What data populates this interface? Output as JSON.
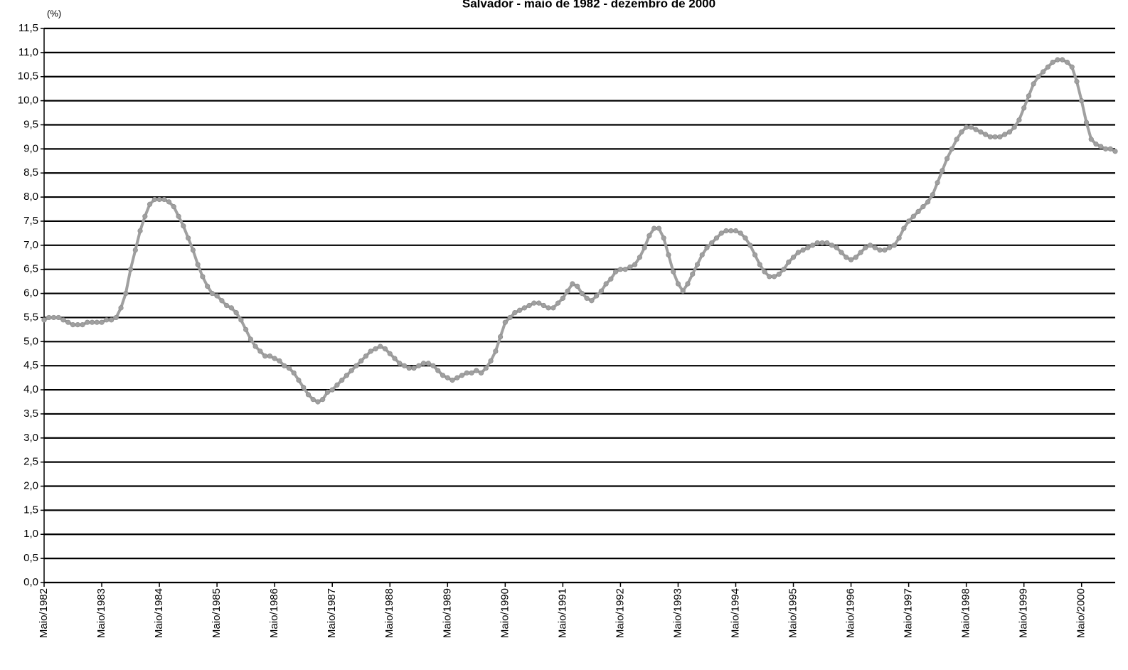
{
  "chart_data": {
    "type": "line",
    "title": "Salvador - maio de 1982 - dezembro de 2000",
    "y_label": "(%)",
    "categories": [
      "Maio/1982",
      null,
      null,
      null,
      null,
      null,
      null,
      null,
      null,
      null,
      null,
      null,
      "Maio/1983",
      null,
      null,
      null,
      null,
      null,
      null,
      null,
      null,
      null,
      null,
      null,
      "Maio/1984",
      null,
      null,
      null,
      null,
      null,
      null,
      null,
      null,
      null,
      null,
      null,
      "Maio/1985",
      null,
      null,
      null,
      null,
      null,
      null,
      null,
      null,
      null,
      null,
      null,
      "Maio/1986",
      null,
      null,
      null,
      null,
      null,
      null,
      null,
      null,
      null,
      null,
      null,
      "Maio/1987",
      null,
      null,
      null,
      null,
      null,
      null,
      null,
      null,
      null,
      null,
      null,
      "Maio/1988",
      null,
      null,
      null,
      null,
      null,
      null,
      null,
      null,
      null,
      null,
      null,
      "Maio/1989",
      null,
      null,
      null,
      null,
      null,
      null,
      null,
      null,
      null,
      null,
      null,
      "Maio/1990",
      null,
      null,
      null,
      null,
      null,
      null,
      null,
      null,
      null,
      null,
      null,
      "Maio/1991",
      null,
      null,
      null,
      null,
      null,
      null,
      null,
      null,
      null,
      null,
      null,
      "Maio/1992",
      null,
      null,
      null,
      null,
      null,
      null,
      null,
      null,
      null,
      null,
      null,
      "Maio/1993",
      null,
      null,
      null,
      null,
      null,
      null,
      null,
      null,
      null,
      null,
      null,
      "Maio/1994",
      null,
      null,
      null,
      null,
      null,
      null,
      null,
      null,
      null,
      null,
      null,
      "Maio/1995",
      null,
      null,
      null,
      null,
      null,
      null,
      null,
      null,
      null,
      null,
      null,
      "Maio/1996",
      null,
      null,
      null,
      null,
      null,
      null,
      null,
      null,
      null,
      null,
      null,
      "Maio/1997",
      null,
      null,
      null,
      null,
      null,
      null,
      null,
      null,
      null,
      null,
      null,
      "Maio/1998",
      null,
      null,
      null,
      null,
      null,
      null,
      null,
      null,
      null,
      null,
      null,
      "Maio/1999",
      null,
      null,
      null,
      null,
      null,
      null,
      null,
      null,
      null,
      null,
      null,
      "Maio/2000",
      null,
      null,
      null,
      null,
      null,
      null,
      null
    ],
    "series": [
      {
        "color": "#a0a0a0",
        "values": [
          5.45,
          5.5,
          5.5,
          5.5,
          5.45,
          5.4,
          5.35,
          5.35,
          5.35,
          5.4,
          5.4,
          5.4,
          5.4,
          5.45,
          5.45,
          5.5,
          5.7,
          6.0,
          6.5,
          6.9,
          7.3,
          7.6,
          7.85,
          7.95,
          7.95,
          7.95,
          7.9,
          7.8,
          7.6,
          7.4,
          7.15,
          6.9,
          6.6,
          6.35,
          6.15,
          6.0,
          5.95,
          5.85,
          5.75,
          5.7,
          5.6,
          5.45,
          5.25,
          5.05,
          4.9,
          4.8,
          4.7,
          4.7,
          4.65,
          4.6,
          4.5,
          4.45,
          4.35,
          4.2,
          4.05,
          3.9,
          3.8,
          3.75,
          3.8,
          3.95,
          4.0,
          4.1,
          4.2,
          4.3,
          4.4,
          4.5,
          4.6,
          4.7,
          4.8,
          4.85,
          4.9,
          4.85,
          4.75,
          4.65,
          4.55,
          4.5,
          4.45,
          4.45,
          4.5,
          4.55,
          4.55,
          4.5,
          4.4,
          4.3,
          4.25,
          4.2,
          4.25,
          4.3,
          4.35,
          4.35,
          4.4,
          4.35,
          4.45,
          4.6,
          4.8,
          5.1,
          5.4,
          5.5,
          5.6,
          5.65,
          5.7,
          5.75,
          5.8,
          5.8,
          5.75,
          5.7,
          5.7,
          5.8,
          5.9,
          6.05,
          6.2,
          6.15,
          6.0,
          5.9,
          5.85,
          5.95,
          6.05,
          6.2,
          6.3,
          6.45,
          6.5,
          6.5,
          6.55,
          6.6,
          6.75,
          6.95,
          7.2,
          7.35,
          7.35,
          7.15,
          6.8,
          6.45,
          6.2,
          6.05,
          6.2,
          6.4,
          6.6,
          6.8,
          6.95,
          7.05,
          7.15,
          7.25,
          7.3,
          7.3,
          7.3,
          7.25,
          7.15,
          7.0,
          6.8,
          6.6,
          6.45,
          6.35,
          6.35,
          6.4,
          6.5,
          6.65,
          6.75,
          6.85,
          6.9,
          6.95,
          7.0,
          7.05,
          7.05,
          7.05,
          7.0,
          6.95,
          6.85,
          6.75,
          6.7,
          6.75,
          6.85,
          6.95,
          7.0,
          6.95,
          6.9,
          6.9,
          6.95,
          7.0,
          7.15,
          7.35,
          7.5,
          7.6,
          7.7,
          7.8,
          7.9,
          8.05,
          8.3,
          8.55,
          8.8,
          9.0,
          9.2,
          9.35,
          9.45,
          9.45,
          9.4,
          9.35,
          9.3,
          9.25,
          9.25,
          9.25,
          9.3,
          9.35,
          9.45,
          9.6,
          9.85,
          10.1,
          10.35,
          10.5,
          10.6,
          10.7,
          10.8,
          10.85,
          10.85,
          10.8,
          10.7,
          10.4,
          10.0,
          9.55,
          9.2,
          9.1,
          9.05,
          9.0,
          9.0,
          8.95
        ]
      }
    ],
    "ylim": [
      0,
      11.5
    ],
    "yticks": [
      {
        "value": 0,
        "label": "0,0"
      },
      {
        "value": 0.5,
        "label": "0,5"
      },
      {
        "value": 1,
        "label": "1,0"
      },
      {
        "value": 1.5,
        "label": "1,5"
      },
      {
        "value": 2,
        "label": "2,0"
      },
      {
        "value": 2.5,
        "label": "2,5"
      },
      {
        "value": 3,
        "label": "3,0"
      },
      {
        "value": 3.5,
        "label": "3,5"
      },
      {
        "value": 4,
        "label": "4,0"
      },
      {
        "value": 4.5,
        "label": "4,5"
      },
      {
        "value": 5,
        "label": "5,0"
      },
      {
        "value": 5.5,
        "label": "5,5"
      },
      {
        "value": 6,
        "label": "6,0"
      },
      {
        "value": 6.5,
        "label": "6,5"
      },
      {
        "value": 7,
        "label": "7,0"
      },
      {
        "value": 7.5,
        "label": "7,5"
      },
      {
        "value": 8,
        "label": "8,0"
      },
      {
        "value": 8.5,
        "label": "8,5"
      },
      {
        "value": 9,
        "label": "9,0"
      },
      {
        "value": 9.5,
        "label": "9,5"
      },
      {
        "value": 10,
        "label": "10,0"
      },
      {
        "value": 10.5,
        "label": "10,5"
      },
      {
        "value": 11,
        "label": "11,0"
      },
      {
        "value": 11.5,
        "label": "11,5"
      }
    ],
    "grid": true
  }
}
